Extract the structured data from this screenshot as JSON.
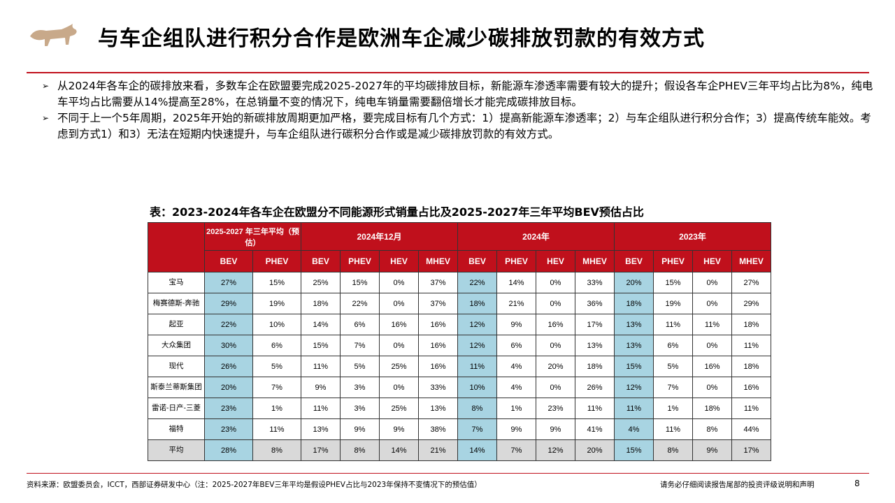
{
  "header": {
    "title": "与车企组队进行积分合作是欧洲车企减少碳排放罚款的有效方式",
    "logo": "bull-logo"
  },
  "bullets": [
    "从2024年各车企的碳排放来看，多数车企在欧盟要完成2025-2027年的平均碳排放目标，新能源车渗透率需要有较大的提升；假设各车企PHEV三年平均占比为8%，纯电车平均占比需要从14%提高至28%，在总销量不变的情况下，纯电车销量需要翻倍增长才能完成碳排放目标。",
    "不同于上一个5年周期，2025年开始的新碳排放周期更加严格，要完成目标有几个方式：1）提高新能源车渗透率；2）与车企组队进行积分合作；3）提高传统车能效。考虑到方式1）和3）无法在短期内快速提升，与车企组队进行碳积分合作或是减少碳排放罚款的有效方式。"
  ],
  "table": {
    "title": "表：2023-2024年各车企在欧盟分不同能源形式销量占比及2025-2027年三年平均BEV预估占比",
    "groups": [
      "2025-2027 年三年平均（预估）",
      "2024年12月",
      "2024年",
      "2023年"
    ],
    "subheaders": [
      "BEV",
      "PHEV",
      "BEV",
      "PHEV",
      "HEV",
      "MHEV",
      "BEV",
      "PHEV",
      "HEV",
      "MHEV",
      "BEV",
      "PHEV",
      "HEV",
      "MHEV"
    ],
    "rows": [
      {
        "name": "宝马",
        "values": [
          "27%",
          "15%",
          "25%",
          "15%",
          "0%",
          "37%",
          "22%",
          "14%",
          "0%",
          "33%",
          "20%",
          "15%",
          "0%",
          "27%"
        ]
      },
      {
        "name": "梅赛德斯-奔驰",
        "values": [
          "29%",
          "19%",
          "18%",
          "22%",
          "0%",
          "37%",
          "18%",
          "21%",
          "0%",
          "36%",
          "18%",
          "19%",
          "0%",
          "29%"
        ]
      },
      {
        "name": "起亚",
        "values": [
          "22%",
          "10%",
          "14%",
          "6%",
          "16%",
          "16%",
          "12%",
          "9%",
          "16%",
          "17%",
          "13%",
          "11%",
          "11%",
          "18%"
        ]
      },
      {
        "name": "大众集团",
        "values": [
          "30%",
          "6%",
          "15%",
          "7%",
          "0%",
          "16%",
          "12%",
          "6%",
          "0%",
          "13%",
          "13%",
          "6%",
          "0%",
          "11%"
        ]
      },
      {
        "name": "现代",
        "values": [
          "26%",
          "5%",
          "11%",
          "5%",
          "25%",
          "16%",
          "11%",
          "4%",
          "20%",
          "18%",
          "15%",
          "5%",
          "16%",
          "18%"
        ]
      },
      {
        "name": "斯泰兰蒂斯集团",
        "values": [
          "20%",
          "7%",
          "9%",
          "3%",
          "0%",
          "33%",
          "10%",
          "4%",
          "0%",
          "26%",
          "12%",
          "7%",
          "0%",
          "16%"
        ]
      },
      {
        "name": "雷诺-日产-三菱",
        "values": [
          "23%",
          "1%",
          "11%",
          "3%",
          "25%",
          "13%",
          "8%",
          "1%",
          "23%",
          "11%",
          "11%",
          "1%",
          "18%",
          "11%"
        ]
      },
      {
        "name": "福特",
        "values": [
          "23%",
          "11%",
          "13%",
          "9%",
          "9%",
          "38%",
          "7%",
          "9%",
          "9%",
          "41%",
          "4%",
          "11%",
          "8%",
          "44%"
        ]
      },
      {
        "name": "平均",
        "values": [
          "28%",
          "8%",
          "17%",
          "8%",
          "14%",
          "21%",
          "14%",
          "7%",
          "12%",
          "20%",
          "15%",
          "8%",
          "9%",
          "17%"
        ]
      }
    ]
  },
  "footer": {
    "source": "资料来源：欧盟委员会，ICCT，西部证券研发中心（注：2025-2027年BEV三年平均是假设PHEV占比与2023年保持不变情况下的预估值）",
    "disclaimer": "请务必仔细阅读报告尾部的投资评级说明和声明",
    "page": "8"
  },
  "colors": {
    "accent": "#c0101c",
    "bev_highlight": "#a8d4e2",
    "avg_row": "#d9d9d9"
  }
}
